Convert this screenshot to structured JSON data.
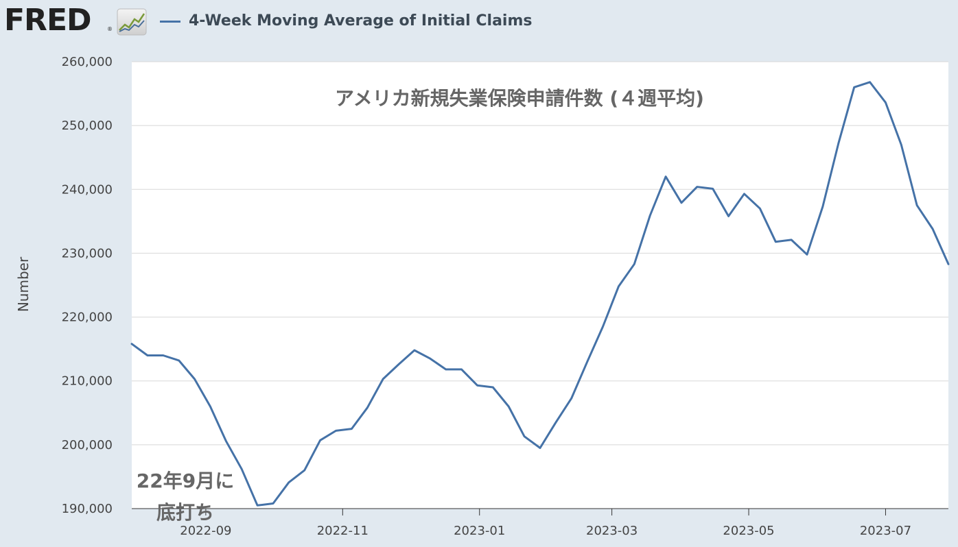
{
  "header": {
    "logo_text": "FRED",
    "logo_reg": "®",
    "legend_label": "4-Week Moving Average of Initial Claims"
  },
  "colors": {
    "series": "#4572a7",
    "background": "#e1e9f0",
    "plot": "#ffffff",
    "grid": "#d8d8d8"
  },
  "chart_data": {
    "type": "line",
    "title": "アメリカ新規失業保険申請件数 (４週平均)",
    "annotation": "22年9月に\n底打ち",
    "ylabel": "Number",
    "xlabel": "",
    "ylim": [
      190000,
      260000
    ],
    "xlim": [
      "2022-07-30",
      "2023-07-29"
    ],
    "grid": true,
    "y_ticks": [
      190000,
      200000,
      210000,
      220000,
      230000,
      240000,
      250000,
      260000
    ],
    "y_tick_labels": [
      "190,000",
      "200,000",
      "210,000",
      "220,000",
      "230,000",
      "240,000",
      "250,000",
      "260,000"
    ],
    "x_ticks": [
      "2022-09-01",
      "2022-11-01",
      "2023-01-01",
      "2023-03-01",
      "2023-05-01",
      "2023-07-01"
    ],
    "x_tick_labels": [
      "2022-09",
      "2022-11",
      "2023-01",
      "2023-03",
      "2023-05",
      "2023-07"
    ],
    "series": [
      {
        "name": "4-Week Moving Average of Initial Claims",
        "x": [
          "2022-07-30",
          "2022-08-06",
          "2022-08-13",
          "2022-08-20",
          "2022-08-27",
          "2022-09-03",
          "2022-09-10",
          "2022-09-17",
          "2022-09-24",
          "2022-10-01",
          "2022-10-08",
          "2022-10-15",
          "2022-10-22",
          "2022-10-29",
          "2022-11-05",
          "2022-11-12",
          "2022-11-19",
          "2022-11-26",
          "2022-12-03",
          "2022-12-10",
          "2022-12-17",
          "2022-12-24",
          "2022-12-31",
          "2023-01-07",
          "2023-01-14",
          "2023-01-21",
          "2023-01-28",
          "2023-02-04",
          "2023-02-11",
          "2023-02-18",
          "2023-02-25",
          "2023-03-04",
          "2023-03-11",
          "2023-03-18",
          "2023-03-25",
          "2023-04-01",
          "2023-04-08",
          "2023-04-15",
          "2023-04-22",
          "2023-04-29",
          "2023-05-06",
          "2023-05-13",
          "2023-05-20",
          "2023-05-27",
          "2023-06-03",
          "2023-06-10",
          "2023-06-17",
          "2023-06-24",
          "2023-07-01",
          "2023-07-08",
          "2023-07-15",
          "2023-07-22",
          "2023-07-29"
        ],
        "values": [
          215800,
          214000,
          214000,
          213200,
          210300,
          206000,
          200600,
          196200,
          190500,
          190800,
          194100,
          196000,
          200700,
          202200,
          202500,
          205800,
          210300,
          212600,
          214800,
          213500,
          211800,
          211800,
          209300,
          209000,
          206000,
          201300,
          199500,
          203500,
          207300,
          213000,
          218500,
          224800,
          228300,
          235900,
          242000,
          237900,
          240400,
          240100,
          235800,
          239300,
          237000,
          231800,
          232100,
          229800,
          237300,
          247200,
          256000,
          256800,
          253600,
          247000,
          237500,
          233800,
          228300
        ]
      }
    ]
  }
}
